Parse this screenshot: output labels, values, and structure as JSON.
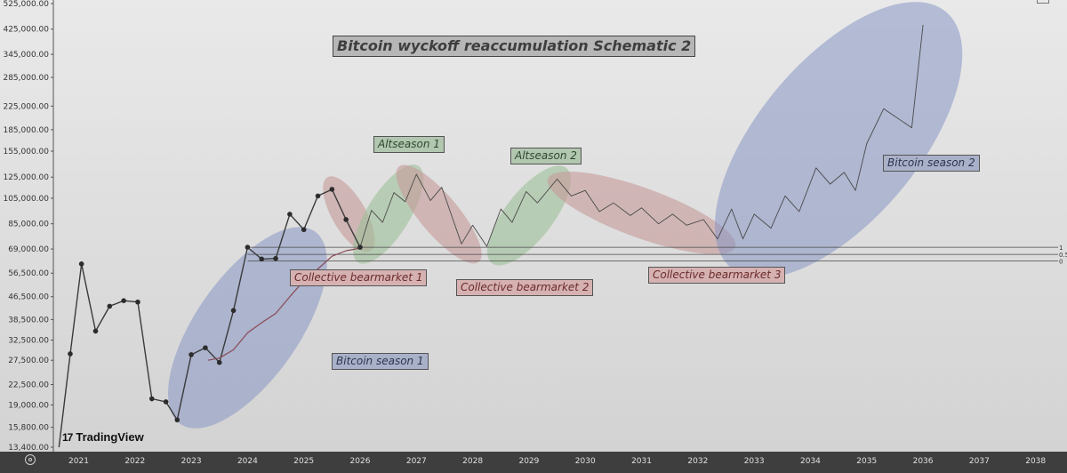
{
  "chart_data": {
    "type": "line",
    "title": "Bitcoin wyckoff reaccumulation Schematic 2",
    "xlabel": "",
    "ylabel": "",
    "yscale": "log",
    "ylim": [
      13400,
      525000
    ],
    "xlim": [
      2020.55,
      2038.4
    ],
    "y_ticks": [
      "525,000.00",
      "425,000.00",
      "345,000.00",
      "285,000.00",
      "225,000.00",
      "185,000.00",
      "155,000.00",
      "125,000.00",
      "105,000.00",
      "85,000.00",
      "69,000.00",
      "56,500.00",
      "46,500.00",
      "38,500.00",
      "32,500.00",
      "27,500.00",
      "22,500.00",
      "19,000.00",
      "15,800.00",
      "13,400.00"
    ],
    "x_ticks": [
      "2021",
      "2022",
      "2023",
      "2024",
      "2025",
      "2026",
      "2027",
      "2028",
      "2029",
      "2030",
      "2031",
      "2032",
      "2033",
      "2034",
      "2035",
      "2036",
      "2037",
      "2038"
    ],
    "series": [
      {
        "style": "price-with-markers",
        "points": [
          [
            2020.65,
            13400
          ],
          [
            2020.85,
            29000
          ],
          [
            2021.05,
            61000
          ],
          [
            2021.3,
            35000
          ],
          [
            2021.55,
            43000
          ],
          [
            2021.8,
            45000
          ],
          [
            2022.05,
            44500
          ],
          [
            2022.3,
            20000
          ],
          [
            2022.55,
            19500
          ],
          [
            2022.75,
            16800
          ],
          [
            2023.0,
            28800
          ],
          [
            2023.25,
            30500
          ],
          [
            2023.5,
            27000
          ],
          [
            2023.75,
            41500
          ],
          [
            2024.0,
            70000
          ],
          [
            2024.25,
            63500
          ],
          [
            2024.5,
            63800
          ],
          [
            2024.75,
            92000
          ],
          [
            2025.0,
            81000
          ],
          [
            2025.25,
            107000
          ],
          [
            2025.5,
            113000
          ],
          [
            2025.75,
            88000
          ],
          [
            2026.0,
            70000
          ]
        ]
      },
      {
        "style": "moving-average",
        "points": [
          [
            2023.3,
            27500
          ],
          [
            2023.5,
            28000
          ],
          [
            2023.75,
            30000
          ],
          [
            2024.0,
            34500
          ],
          [
            2024.25,
            37500
          ],
          [
            2024.5,
            40500
          ],
          [
            2024.75,
            46500
          ],
          [
            2025.0,
            53000
          ],
          [
            2025.25,
            58500
          ],
          [
            2025.5,
            65000
          ],
          [
            2025.75,
            68000
          ],
          [
            2026.0,
            69500
          ]
        ]
      },
      {
        "style": "projection",
        "points": [
          [
            2026.0,
            70000
          ],
          [
            2026.2,
            95000
          ],
          [
            2026.4,
            86000
          ],
          [
            2026.6,
            110000
          ],
          [
            2026.8,
            102000
          ],
          [
            2027.0,
            128000
          ],
          [
            2027.25,
            103000
          ],
          [
            2027.45,
            115000
          ],
          [
            2027.8,
            72000
          ],
          [
            2028.0,
            84000
          ],
          [
            2028.25,
            70500
          ],
          [
            2028.5,
            96000
          ],
          [
            2028.7,
            86000
          ],
          [
            2028.95,
            111000
          ],
          [
            2029.15,
            101000
          ],
          [
            2029.5,
            123000
          ],
          [
            2029.75,
            107000
          ],
          [
            2030.0,
            112000
          ],
          [
            2030.25,
            94000
          ],
          [
            2030.5,
            101000
          ],
          [
            2030.8,
            91000
          ],
          [
            2031.0,
            97000
          ],
          [
            2031.3,
            85000
          ],
          [
            2031.55,
            92000
          ],
          [
            2031.8,
            84000
          ],
          [
            2032.1,
            88000
          ],
          [
            2032.35,
            75000
          ],
          [
            2032.6,
            96000
          ],
          [
            2032.8,
            75000
          ],
          [
            2033.0,
            92000
          ],
          [
            2033.3,
            82000
          ],
          [
            2033.55,
            107000
          ],
          [
            2033.8,
            94000
          ],
          [
            2034.1,
            135000
          ],
          [
            2034.35,
            118000
          ],
          [
            2034.6,
            130000
          ],
          [
            2034.8,
            112000
          ],
          [
            2035.0,
            165000
          ],
          [
            2035.3,
            220000
          ],
          [
            2035.8,
            188000
          ],
          [
            2036.0,
            440000
          ]
        ]
      }
    ],
    "horizontal_levels": [
      {
        "label": "1",
        "value": 70000
      },
      {
        "label": "0.5",
        "value": 66000
      },
      {
        "label": "0",
        "value": 62500
      }
    ],
    "annotations": [
      {
        "text": "Bitcoin wyckoff reaccumulation Schematic 2",
        "kind": "title"
      },
      {
        "text": "Altseason 1",
        "kind": "green"
      },
      {
        "text": "Altseason 2",
        "kind": "green"
      },
      {
        "text": "Bitcoin season 2",
        "kind": "blue"
      },
      {
        "text": "Collective bearmarket 1",
        "kind": "red"
      },
      {
        "text": "Collective bearmarket 2",
        "kind": "red"
      },
      {
        "text": "Collective bearmarket 3",
        "kind": "red"
      },
      {
        "text": "Bitcoin season 1",
        "kind": "blue"
      }
    ],
    "colors": {
      "price_line": "#3a3a3a",
      "moving_average": "#8a4a55",
      "projection_line": "#4a4a4a",
      "blue_zone": "#8696c4",
      "red_zone": "#c79999",
      "green_zone": "#9cbf98"
    },
    "grid": false,
    "legend": "none"
  },
  "watermark": "TradingView",
  "icons": {
    "bottom_left": "settings-icon",
    "top_right": "panel-icon"
  }
}
